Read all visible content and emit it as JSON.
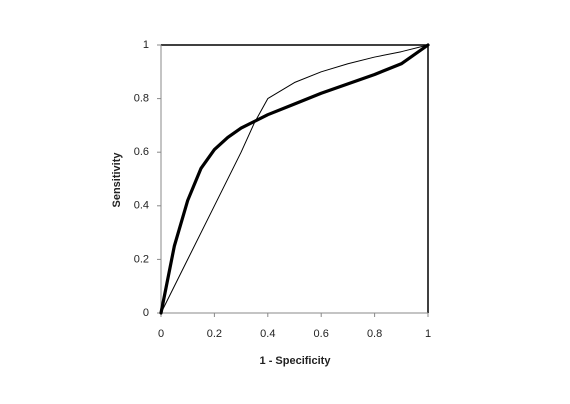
{
  "chart_data": {
    "type": "line",
    "x_label": "1 - Specificity",
    "y_label": "Sensitivity",
    "xlim": [
      0,
      1
    ],
    "ylim": [
      0,
      1
    ],
    "xticks": [
      0,
      0.2,
      0.4,
      0.6,
      0.8,
      1
    ],
    "yticks": [
      0,
      0.2,
      0.4,
      0.6,
      0.8,
      1
    ],
    "series": [
      {
        "color": "#000000",
        "width": 3.2,
        "x": [
          0,
          0.05,
          0.1,
          0.15,
          0.2,
          0.25,
          0.3,
          0.4,
          0.5,
          0.6,
          0.7,
          0.8,
          0.9,
          1
        ],
        "values": [
          0,
          0.25,
          0.42,
          0.54,
          0.61,
          0.655,
          0.69,
          0.74,
          0.78,
          0.82,
          0.855,
          0.89,
          0.93,
          1
        ]
      },
      {
        "color": "#000000",
        "width": 1,
        "x": [
          0,
          0.1,
          0.2,
          0.3,
          0.35,
          0.4,
          0.5,
          0.6,
          0.7,
          0.8,
          0.9,
          1
        ],
        "values": [
          0,
          0.2,
          0.4,
          0.6,
          0.71,
          0.8,
          0.86,
          0.9,
          0.93,
          0.955,
          0.975,
          1
        ]
      }
    ]
  }
}
